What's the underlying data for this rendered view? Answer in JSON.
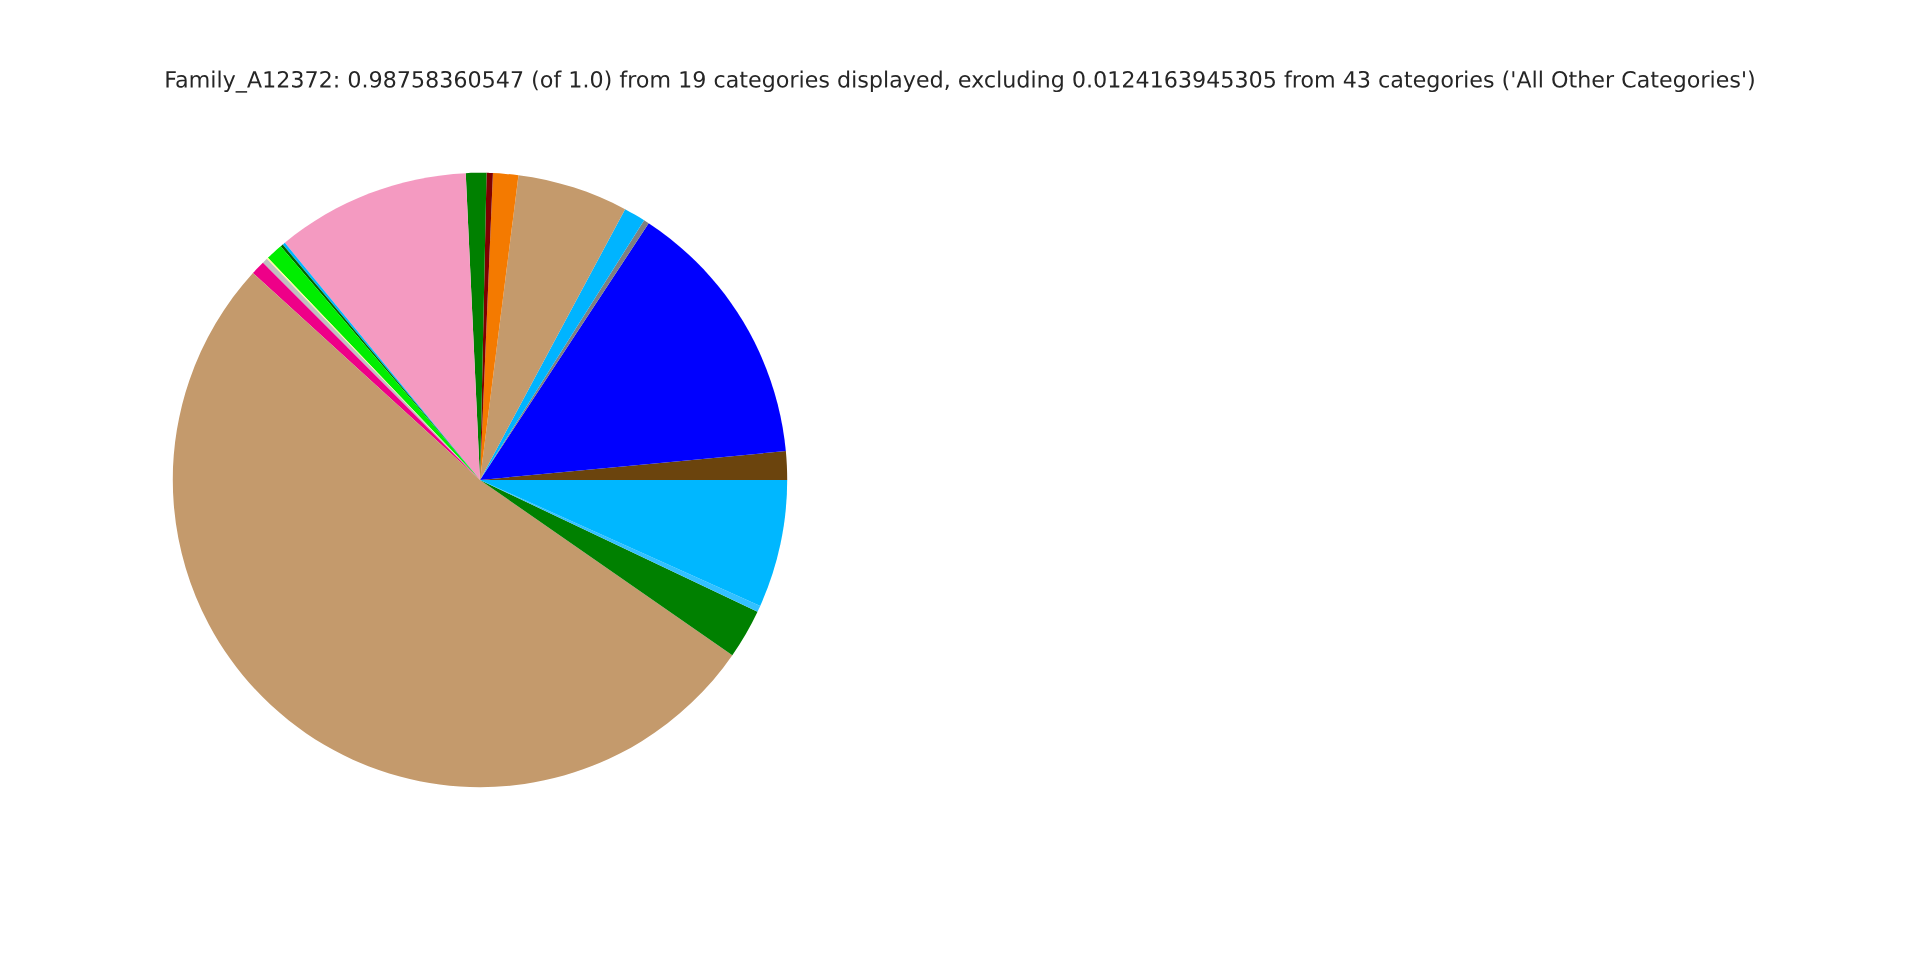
{
  "chart_data": {
    "type": "pie",
    "title": "Family_A12372: 0.98758360547 (of 1.0) from 19 categories displayed, excluding 0.0124163945305 from 43 categories ('All Other Categories')",
    "categories": [
      null,
      null,
      null,
      null,
      null,
      null,
      null,
      null,
      null,
      null,
      null,
      null,
      null,
      null,
      null,
      null,
      null,
      null,
      null
    ],
    "values": [
      1.5,
      14.25,
      0.28,
      1.14,
      5.83,
      1.33,
      0.33,
      1.08,
      10.22,
      0.14,
      0.14,
      0.89,
      0.08,
      0.28,
      0.75,
      52.1,
      2.61,
      0.33,
      6.72
    ],
    "colors": [
      "#6b440d",
      "#0000ff",
      "#808080",
      "#00b4ff",
      "#c49a6c",
      "#f47a00",
      "#7f0000",
      "#008000",
      "#f49ac1",
      "#00b4ff",
      "#006400",
      "#00ee00",
      "#ffff99",
      "#c0c0c0",
      "#ee0088",
      "#c49a6c",
      "#008000",
      "#33c0ff",
      "#00b7ff"
    ],
    "legend": false
  }
}
